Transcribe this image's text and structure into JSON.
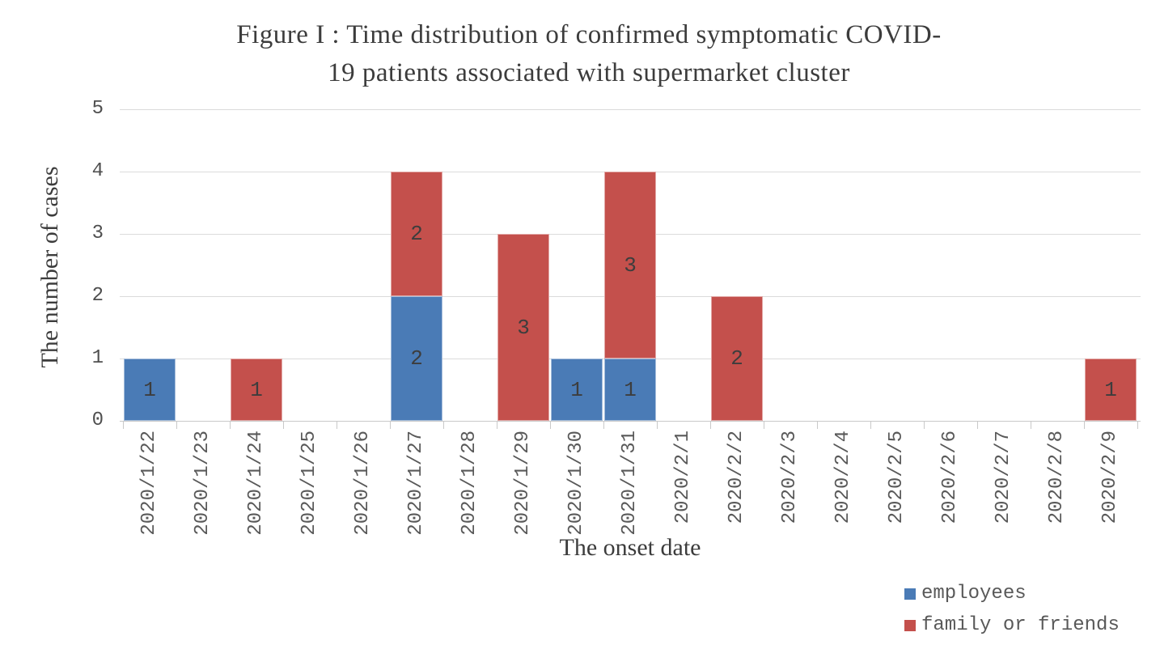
{
  "figure": {
    "title_line1": "Figure I : Time distribution of confirmed symptomatic COVID-",
    "title_line2": "19 patients associated with supermarket cluster"
  },
  "chart_data": {
    "type": "bar",
    "stacked": true,
    "title": "Figure I : Time distribution of confirmed symptomatic COVID-19 patients associated with supermarket cluster",
    "xlabel": "The onset date",
    "ylabel": "The number of cases",
    "ylim": [
      0,
      5
    ],
    "yticks": [
      0,
      1,
      2,
      3,
      4,
      5
    ],
    "grid": true,
    "data_labels": true,
    "legend_position": "bottom-right",
    "categories": [
      "2020/1/22",
      "2020/1/23",
      "2020/1/24",
      "2020/1/25",
      "2020/1/26",
      "2020/1/27",
      "2020/1/28",
      "2020/1/29",
      "2020/1/30",
      "2020/1/31",
      "2020/2/1",
      "2020/2/2",
      "2020/2/3",
      "2020/2/4",
      "2020/2/5",
      "2020/2/6",
      "2020/2/7",
      "2020/2/8",
      "2020/2/9"
    ],
    "series": [
      {
        "name": "employees",
        "color": "#4a7bb6",
        "values": [
          1,
          0,
          0,
          0,
          0,
          2,
          0,
          0,
          1,
          1,
          0,
          0,
          0,
          0,
          0,
          0,
          0,
          0,
          0
        ]
      },
      {
        "name": "family or friends",
        "color": "#c4504c",
        "values": [
          0,
          0,
          1,
          0,
          0,
          2,
          0,
          3,
          0,
          3,
          0,
          2,
          0,
          0,
          0,
          0,
          0,
          0,
          1
        ]
      }
    ],
    "colors": {
      "gridline": "#dbdbdb",
      "axis": "#c9c9c9"
    }
  }
}
